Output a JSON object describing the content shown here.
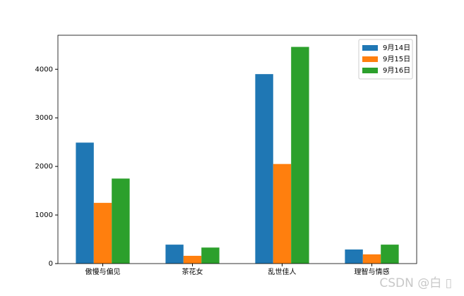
{
  "chart_data": {
    "type": "bar",
    "categories": [
      "傲慢与偏见",
      "茶花女",
      "乱世佳人",
      "理智与情感"
    ],
    "series": [
      {
        "name": "9月14日",
        "color": "#1f77b4",
        "values": [
          2490,
          390,
          3900,
          290
        ]
      },
      {
        "name": "9月15日",
        "color": "#ff7f0e",
        "values": [
          1250,
          160,
          2050,
          190
        ]
      },
      {
        "name": "9月16日",
        "color": "#2ca02c",
        "values": [
          1750,
          330,
          4460,
          390
        ]
      }
    ],
    "ylim": [
      0,
      4700
    ],
    "yticks": [
      0,
      1000,
      2000,
      3000,
      4000
    ],
    "legend": "upper right",
    "watermark": "CSDN @白 ▯"
  }
}
